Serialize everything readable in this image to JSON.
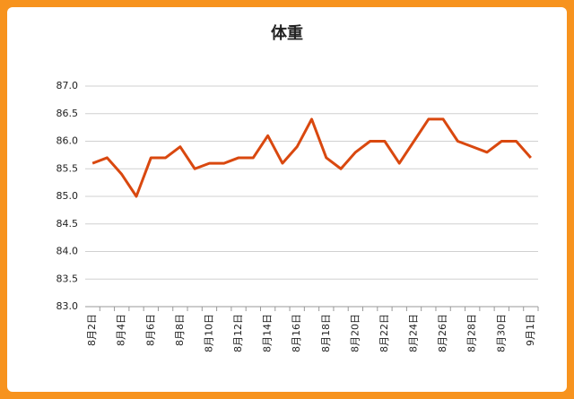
{
  "chart_data": {
    "type": "line",
    "title": "体重",
    "categories": [
      "8月2日",
      null,
      "8月4日",
      null,
      "8月6日",
      null,
      "8月8日",
      null,
      "8月10日",
      null,
      "8月12日",
      null,
      "8月14日",
      null,
      "8月16日",
      null,
      "8月18日",
      null,
      "8月20日",
      null,
      "8月22日",
      null,
      "8月24日",
      null,
      "8月26日",
      null,
      "8月28日",
      null,
      "8月30日",
      null,
      "9月1日"
    ],
    "series": [
      {
        "name": "体重",
        "color": "#d9480f",
        "values": [
          85.6,
          85.7,
          85.4,
          85.0,
          85.7,
          85.7,
          85.9,
          85.5,
          85.6,
          85.6,
          85.7,
          85.7,
          86.1,
          85.6,
          85.9,
          86.4,
          85.7,
          85.5,
          85.8,
          86.0,
          86.0,
          85.6,
          86.0,
          86.4,
          86.4,
          86.0,
          85.9,
          85.8,
          86.0,
          86.0,
          85.7
        ]
      }
    ],
    "ylim": [
      83.0,
      87.0
    ],
    "yticks": [
      {
        "value": 83,
        "label": "83.0"
      },
      {
        "value": 83.5,
        "label": "83.5"
      },
      {
        "value": 84,
        "label": "84.0"
      },
      {
        "value": 84.5,
        "label": "84.5"
      },
      {
        "value": 85,
        "label": "85.0"
      },
      {
        "value": 85.5,
        "label": "85.5"
      },
      {
        "value": 86,
        "label": "86.0"
      },
      {
        "value": 86.5,
        "label": "86.5"
      },
      {
        "value": 87,
        "label": "87.0"
      }
    ],
    "grid": true
  }
}
